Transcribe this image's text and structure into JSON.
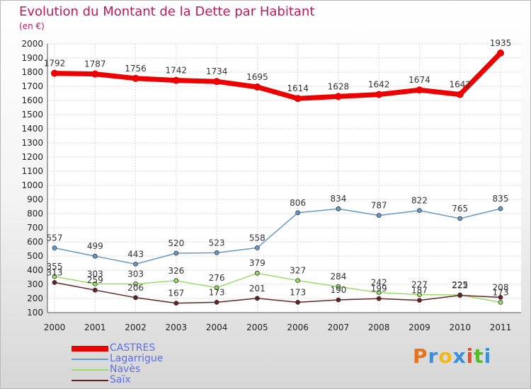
{
  "title": "Evolution du Montant de la Dette par Habitant",
  "subtitle": "(en €)",
  "logo": {
    "letters": [
      "P",
      "r",
      "o",
      "x",
      "i",
      "t",
      "i"
    ],
    "colors": [
      "#e8731c",
      "#3a8fd8",
      "#f0b81e",
      "#3a8fd8",
      "#e84e2c",
      "#58b830",
      "#3a8fd8"
    ]
  },
  "chart_data": {
    "type": "line",
    "x": [
      "2000",
      "2001",
      "2002",
      "2003",
      "2004",
      "2005",
      "2006",
      "2007",
      "2008",
      "2009",
      "2010",
      "2011"
    ],
    "ylim": [
      100,
      2000
    ],
    "yticks": [
      "100",
      "200",
      "300",
      "400",
      "500",
      "600",
      "700",
      "800",
      "900",
      "1000",
      "1100",
      "1200",
      "1300",
      "1400",
      "1500",
      "1600",
      "1700",
      "1800",
      "1900",
      "2000"
    ],
    "grid": true,
    "legend_position": "bottom-left",
    "series": [
      {
        "name": "CASTRES",
        "color": "#ee0000",
        "values": [
          1792,
          1787,
          1756,
          1742,
          1734,
          1695,
          1614,
          1628,
          1642,
          1674,
          1642,
          1935
        ]
      },
      {
        "name": "Lagarrigue",
        "color": "#6699cc",
        "values": [
          557,
          499,
          443,
          520,
          523,
          558,
          806,
          834,
          787,
          822,
          765,
          835
        ]
      },
      {
        "name": "Navès",
        "color": "#99dd66",
        "values": [
          355,
          303,
          303,
          326,
          276,
          379,
          327,
          284,
          242,
          227,
          225,
          173
        ]
      },
      {
        "name": "Saïx",
        "color": "#662222",
        "values": [
          313,
          259,
          206,
          167,
          173,
          201,
          173,
          190,
          199,
          187,
          222,
          208
        ]
      }
    ]
  }
}
